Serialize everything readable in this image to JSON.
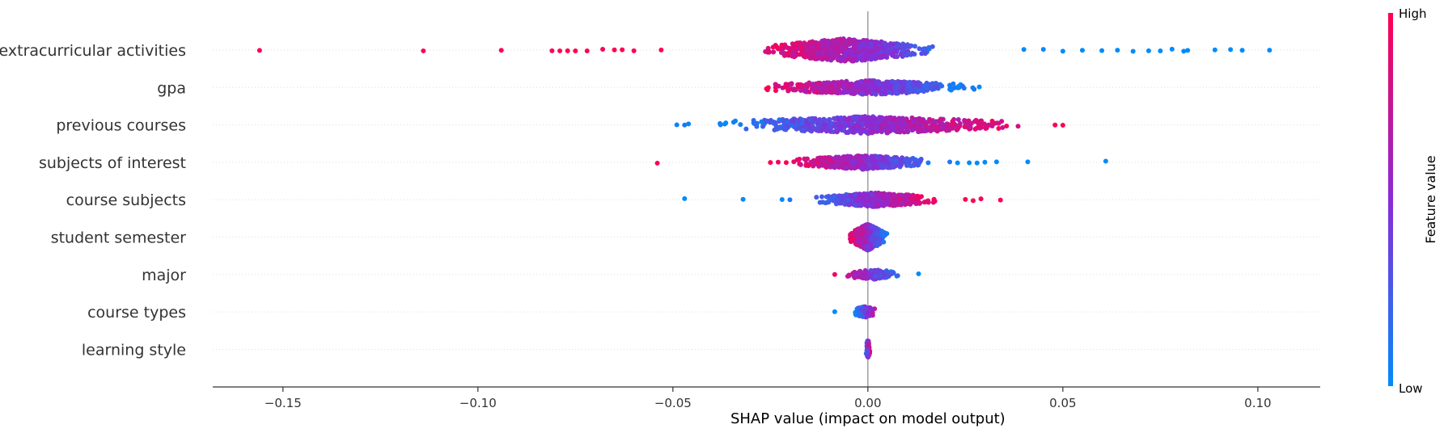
{
  "chart_data": {
    "type": "scatter",
    "subtype": "shap-beeswarm",
    "title": "",
    "xlabel": "SHAP value (impact on model output)",
    "ylabel": "",
    "xlim": [
      -0.168,
      0.116
    ],
    "xticks": [
      -0.15,
      -0.1,
      -0.05,
      0.0,
      0.05,
      0.1
    ],
    "xtick_labels": [
      "−0.15",
      "−0.10",
      "−0.05",
      "0.00",
      "0.05",
      "0.10"
    ],
    "features": [
      {
        "name": "extracurricular activities",
        "min": -0.031,
        "max": 0.02,
        "count": 700,
        "spread": 0.012,
        "high_side": "negative",
        "extremes": [
          -0.156,
          -0.114,
          -0.094,
          -0.081,
          -0.079,
          -0.077,
          -0.075,
          -0.072,
          -0.068,
          -0.065,
          -0.063,
          -0.06,
          -0.053,
          0.04,
          0.045,
          0.05,
          0.055,
          0.06,
          0.064,
          0.068,
          0.072,
          0.075,
          0.078,
          0.081,
          0.082,
          0.089,
          0.093,
          0.096,
          0.103
        ]
      },
      {
        "name": "gpa",
        "min": -0.03,
        "max": 0.031,
        "count": 600,
        "spread": 0.006,
        "high_side": "negative",
        "extremes": []
      },
      {
        "name": "previous courses",
        "min": -0.045,
        "max": 0.046,
        "count": 600,
        "spread": 0.008,
        "high_side": "positive",
        "extremes": [
          -0.049,
          -0.047,
          -0.046,
          0.048,
          0.05
        ]
      },
      {
        "name": "subjects of interest",
        "min": -0.022,
        "max": 0.019,
        "count": 500,
        "spread": 0.006,
        "high_side": "negative",
        "extremes": [
          -0.054,
          -0.025,
          -0.023,
          0.021,
          0.023,
          0.026,
          0.028,
          0.03,
          0.033,
          0.041,
          0.061
        ]
      },
      {
        "name": "course subjects",
        "min": -0.016,
        "max": 0.02,
        "count": 500,
        "spread": 0.006,
        "high_side": "positive",
        "extremes": [
          -0.047,
          -0.032,
          -0.022,
          -0.02,
          0.025,
          0.027,
          0.029,
          0.034
        ]
      },
      {
        "name": "student semester",
        "min": -0.0055,
        "max": 0.0055,
        "count": 600,
        "spread": 0.014,
        "high_side": "negative",
        "extremes": []
      },
      {
        "name": "major",
        "min": -0.0065,
        "max": 0.01,
        "count": 150,
        "spread": 0.003,
        "high_side": "negative",
        "extremes": [
          -0.0085,
          0.013
        ]
      },
      {
        "name": "course types",
        "min": -0.004,
        "max": 0.0025,
        "count": 80,
        "spread": 0.004,
        "high_side": "positive",
        "extremes": [
          -0.0085
        ]
      },
      {
        "name": "learning style",
        "min": -0.0006,
        "max": 0.0006,
        "count": 60,
        "spread": 0.01,
        "high_side": "positive",
        "extremes": []
      }
    ],
    "colorbar": {
      "title": "Feature value",
      "high_label": "High",
      "low_label": "Low",
      "low_color": "#008bfb",
      "high_color": "#ff0051"
    },
    "grid": false,
    "legend": "colorbar-right"
  }
}
